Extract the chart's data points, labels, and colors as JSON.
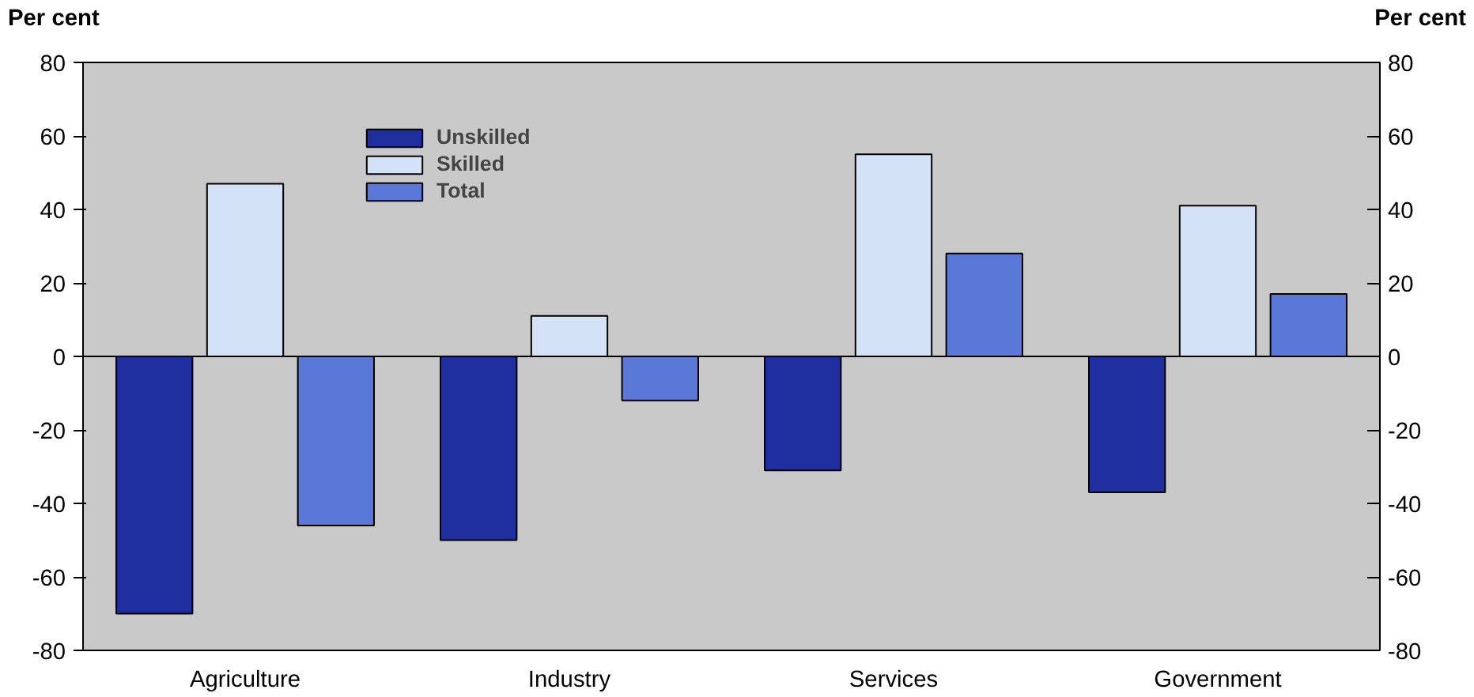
{
  "chart_data": {
    "type": "bar",
    "ylabel": "Per cent",
    "y2label": "Per cent",
    "categories": [
      "Agriculture",
      "Industry",
      "Services",
      "Government"
    ],
    "series": [
      {
        "name": "Unskilled",
        "color": "#1f2fa0",
        "values": [
          -70,
          -50,
          -31,
          -37
        ]
      },
      {
        "name": "Skilled",
        "color": "#d3e2f7",
        "values": [
          47,
          11,
          55,
          41
        ]
      },
      {
        "name": "Total",
        "color": "#5a78d8",
        "values": [
          -46,
          -12,
          28,
          17
        ]
      }
    ],
    "ylim": [
      -80,
      80
    ],
    "yticks": [
      -80,
      -60,
      -40,
      -20,
      0,
      20,
      40,
      60,
      80
    ],
    "y2lim": [
      -80,
      80
    ],
    "y2ticks": [
      -80,
      -60,
      -40,
      -20,
      0,
      20,
      40,
      60,
      80
    ],
    "ref_lines": [
      {
        "axis": "y",
        "value": 0,
        "color": "#000000"
      }
    ],
    "grid": false,
    "legend": "top left"
  }
}
